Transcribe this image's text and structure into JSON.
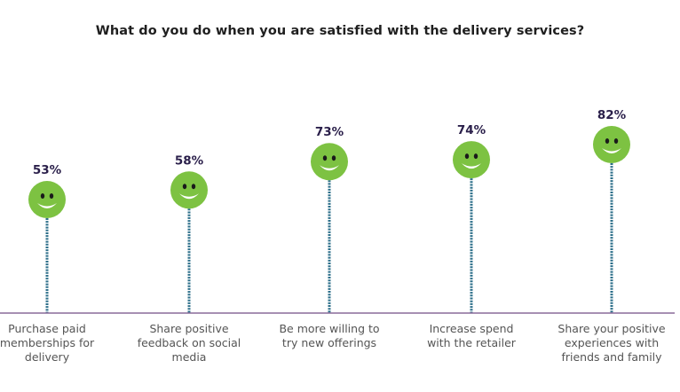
{
  "colors": {
    "smiley": "#7dc242",
    "smiley_features": "#1a1a1a",
    "smile": "#ffffff",
    "stem": "#2d6f8a",
    "baseline": "#8a6b9a",
    "value_text": "#2a1f4a",
    "label_text": "#555555"
  },
  "chart_data": {
    "type": "lollipop",
    "title": "What do you do when you are satisfied with the delivery services?",
    "xlabel": "",
    "ylabel": "",
    "ylim": [
      0,
      100
    ],
    "grid": false,
    "legend": "none",
    "marker_icon": "smiley-face-icon",
    "categories": [
      "Purchase paid memberships for delivery",
      "Share positive feedback on social media",
      "Be more willing to try new offerings",
      "Increase spend with the retailer",
      "Share your positive experiences with friends and family"
    ],
    "values": [
      53,
      58,
      73,
      74,
      82
    ],
    "value_labels": [
      "53%",
      "58%",
      "73%",
      "74%",
      "82%"
    ],
    "category_lines": [
      [
        "Purchase paid",
        "memberships for",
        "delivery"
      ],
      [
        "Share positive",
        "feedback on social",
        "media"
      ],
      [
        "Be more willing to",
        "try new offerings"
      ],
      [
        "Increase spend",
        "with the retailer"
      ],
      [
        "Share your positive",
        "experiences with",
        "friends and family"
      ]
    ]
  }
}
